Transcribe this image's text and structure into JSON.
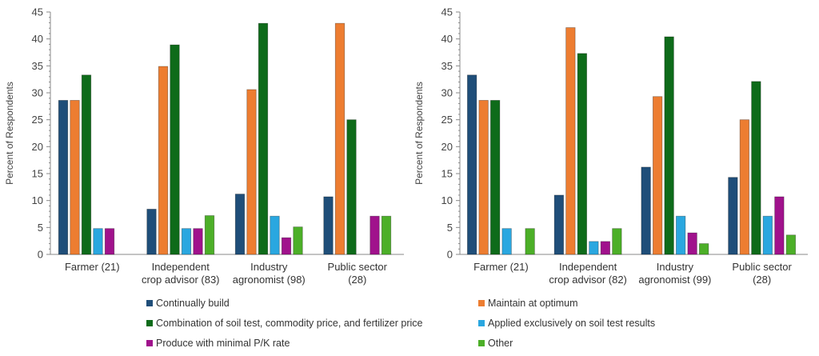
{
  "chart_data": [
    {
      "type": "bar",
      "title": "",
      "xlabel": "",
      "ylabel": "Percent of Respondents",
      "ylim": [
        0,
        45
      ],
      "yticks": [
        0,
        5,
        10,
        15,
        20,
        25,
        30,
        35,
        40,
        45
      ],
      "grid": false,
      "categories": [
        [
          "Farmer (21)"
        ],
        [
          "Independent",
          "crop advisor (83)"
        ],
        [
          "Industry",
          "agronomist (98)"
        ],
        [
          "Public sector",
          "(28)"
        ]
      ],
      "series": [
        {
          "name": "Continually build",
          "values": [
            28.6,
            8.4,
            11.2,
            10.7
          ]
        },
        {
          "name": "Maintain at optimum",
          "values": [
            28.6,
            34.9,
            30.6,
            42.9
          ]
        },
        {
          "name": "Combination of soil test, commodity price, and fertilizer price",
          "values": [
            33.3,
            38.9,
            42.9,
            25.0
          ]
        },
        {
          "name": "Applied exclusively on soil test results",
          "values": [
            4.8,
            4.8,
            7.1,
            0
          ]
        },
        {
          "name": "Produce with minimal P/K rate",
          "values": [
            4.8,
            4.8,
            3.1,
            7.1
          ]
        },
        {
          "name": "Other",
          "values": [
            0,
            7.2,
            5.1,
            7.1
          ]
        }
      ]
    },
    {
      "type": "bar",
      "title": "",
      "xlabel": "",
      "ylabel": "Percent of Respondents",
      "ylim": [
        0,
        45
      ],
      "yticks": [
        0,
        5,
        10,
        15,
        20,
        25,
        30,
        35,
        40,
        45
      ],
      "grid": false,
      "categories": [
        [
          "Farmer (21)"
        ],
        [
          "Independent",
          "crop advisor (82)"
        ],
        [
          "Industry",
          "agronomist (99)"
        ],
        [
          "Public sector",
          "(28)"
        ]
      ],
      "series": [
        {
          "name": "Continually build",
          "values": [
            33.3,
            11.0,
            16.2,
            14.3
          ]
        },
        {
          "name": "Maintain at optimum",
          "values": [
            28.6,
            42.1,
            29.3,
            25.0
          ]
        },
        {
          "name": "Combination of soil test, commodity price, and fertilizer price",
          "values": [
            28.6,
            37.3,
            40.4,
            32.1
          ]
        },
        {
          "name": "Applied exclusively on soil test results",
          "values": [
            4.8,
            2.4,
            7.1,
            7.1
          ]
        },
        {
          "name": "Produce with minimal P/K rate",
          "values": [
            0,
            2.4,
            4.0,
            10.7
          ]
        },
        {
          "name": "Other",
          "values": [
            4.8,
            4.8,
            2.0,
            3.6
          ]
        }
      ]
    }
  ],
  "series_colors": [
    "#1f4e79",
    "#ed7d31",
    "#0e6b1a",
    "#2aa7e0",
    "#a0128c",
    "#4caf28"
  ],
  "legend": {
    "placement": "bottom",
    "items": [
      {
        "label": "Continually build",
        "color": "#1f4e79"
      },
      {
        "label": "Maintain at optimum",
        "color": "#ed7d31"
      },
      {
        "label": "Combination of soil test, commodity price, and fertilizer price",
        "color": "#0e6b1a"
      },
      {
        "label": "Applied exclusively on soil test results",
        "color": "#2aa7e0"
      },
      {
        "label": "Produce with minimal P/K rate",
        "color": "#a0128c"
      },
      {
        "label": "Other",
        "color": "#4caf28"
      }
    ]
  }
}
